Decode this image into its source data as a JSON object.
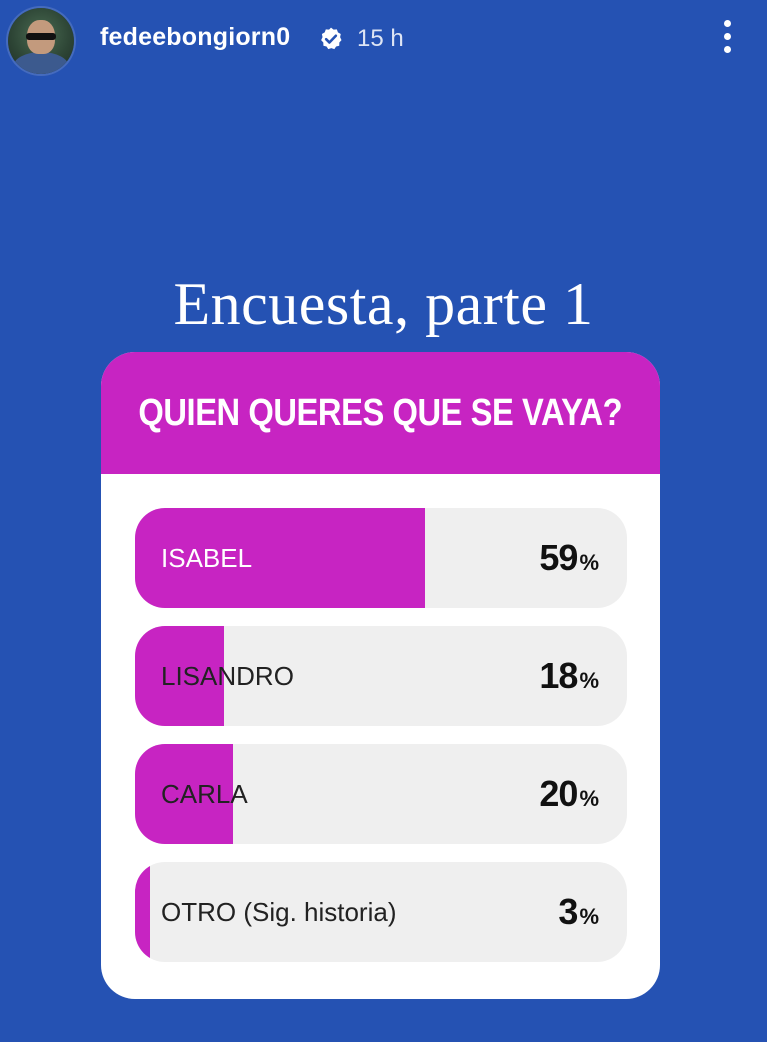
{
  "header": {
    "username": "fedeebongiorn0",
    "verified_icon": "verified-badge-icon",
    "time_ago": "15 h",
    "more_icon": "more-vertical-icon"
  },
  "story": {
    "heading": "Encuesta, parte 1"
  },
  "poll": {
    "question": "QUIEN QUERES QUE SE VAYA?",
    "options": [
      {
        "label": "ISABEL",
        "percent": 59
      },
      {
        "label": "LISANDRO",
        "percent": 18
      },
      {
        "label": "CARLA",
        "percent": 20
      },
      {
        "label": "OTRO (Sig. historia)",
        "percent": 3
      }
    ]
  },
  "colors": {
    "background": "#2552b3",
    "poll_accent": "#c724c2",
    "option_track": "#efefef"
  }
}
